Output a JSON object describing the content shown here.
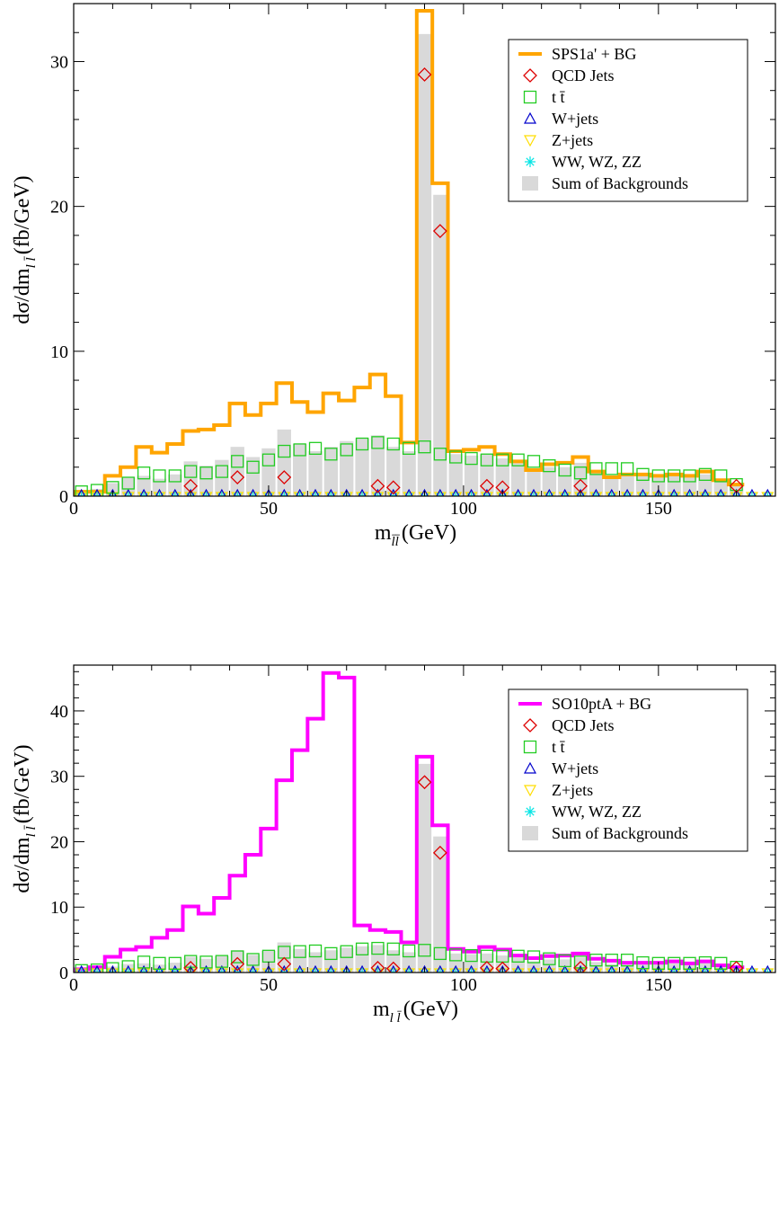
{
  "chart_data": [
    {
      "type": "histogram",
      "xlim": [
        0,
        180
      ],
      "ylim": [
        0,
        34
      ],
      "xticks": [
        0,
        50,
        100,
        150
      ],
      "yticks": [
        0,
        10,
        20,
        30
      ],
      "xlabel": {
        "main": "m",
        "sub": "l̄l̄",
        "unit": "(GeV)"
      },
      "ylabel": {
        "main": "dσ/dm",
        "sub": "l l̄",
        "unit": "(fb/GeV)"
      },
      "legend_position": "top-right",
      "bin_width": 4,
      "signal": {
        "name": "SPS1a' + BG",
        "color": "#ffa500",
        "values": [
          0.3,
          0.3,
          1.4,
          2.0,
          3.4,
          3.0,
          3.6,
          4.5,
          4.6,
          4.9,
          6.4,
          5.6,
          6.4,
          7.8,
          6.5,
          5.8,
          7.1,
          6.6,
          7.5,
          8.4,
          6.9,
          3.7,
          33.5,
          21.6,
          3.1,
          3.2,
          3.4,
          2.9,
          2.4,
          1.8,
          2.2,
          2.3,
          2.7,
          1.7,
          1.3,
          1.5,
          1.5,
          1.4,
          1.5,
          1.4,
          1.7,
          1.1,
          0.8
        ]
      },
      "background_sum": {
        "name": "Sum of Backgrounds",
        "color": "#d9d9d9",
        "values": [
          0.4,
          0.5,
          0.9,
          1.3,
          1.4,
          1.2,
          1.5,
          2.4,
          2.1,
          2.5,
          3.4,
          2.7,
          3.3,
          4.6,
          3.6,
          3.1,
          3.4,
          3.8,
          4.0,
          4.2,
          3.4,
          3.1,
          31.9,
          20.8,
          2.9,
          2.8,
          2.9,
          2.6,
          2.3,
          1.7,
          2.0,
          2.0,
          2.3,
          1.6,
          1.3,
          1.4,
          1.4,
          1.3,
          1.4,
          1.3,
          1.5,
          1.0,
          0.8
        ]
      },
      "qcd": {
        "name": "QCD Jets",
        "color": "#dd0000",
        "points": [
          [
            30,
            0.7
          ],
          [
            42,
            1.3
          ],
          [
            54,
            1.3
          ],
          [
            78,
            0.7
          ],
          [
            82,
            0.6
          ],
          [
            90,
            29.1
          ],
          [
            94,
            18.3
          ],
          [
            106,
            0.7
          ],
          [
            110,
            0.6
          ],
          [
            130,
            0.7
          ],
          [
            170,
            0.7
          ]
        ]
      },
      "ttbar": {
        "name": "t t̄",
        "color": "#22cc22",
        "values": [
          0.3,
          0.4,
          0.6,
          0.9,
          1.6,
          1.4,
          1.4,
          1.7,
          1.6,
          1.7,
          2.4,
          2.0,
          2.5,
          3.1,
          3.2,
          3.3,
          2.9,
          3.2,
          3.6,
          3.7,
          3.6,
          3.3,
          3.4,
          2.9,
          2.7,
          2.6,
          2.5,
          2.5,
          2.5,
          2.4,
          2.1,
          1.8,
          1.6,
          1.9,
          1.9,
          1.9,
          1.5,
          1.4,
          1.4,
          1.4,
          1.5,
          1.4,
          0.8
        ]
      },
      "wjets": {
        "name": "W+jets",
        "color": "#0000cc"
      },
      "zjets": {
        "name": "Z+jets",
        "color": "#ffdd00"
      },
      "dibosons": {
        "name": "WW, WZ, ZZ",
        "color": "#00e5e5"
      }
    },
    {
      "type": "histogram",
      "xlim": [
        0,
        180
      ],
      "ylim": [
        0,
        47
      ],
      "xticks": [
        0,
        50,
        100,
        150
      ],
      "yticks": [
        0,
        10,
        20,
        30,
        40
      ],
      "xlabel": {
        "main": "m",
        "sub": "l l̄",
        "unit": "(GeV)"
      },
      "ylabel": {
        "main": "dσ/dm",
        "sub": "l l̄",
        "unit": "(fb/GeV)"
      },
      "legend_position": "top-right",
      "bin_width": 4,
      "signal": {
        "name": "SO10ptA + BG",
        "color": "#ff00ff",
        "values": [
          0.5,
          0.8,
          2.4,
          3.5,
          3.9,
          5.3,
          6.5,
          10.1,
          9.0,
          11.4,
          14.8,
          18.0,
          22.0,
          29.4,
          34.0,
          38.8,
          45.8,
          45.1,
          7.2,
          6.5,
          6.2,
          4.6,
          33.0,
          22.5,
          3.6,
          3.2,
          3.9,
          3.5,
          2.6,
          2.2,
          2.5,
          2.6,
          2.9,
          2.1,
          1.8,
          1.5,
          1.5,
          1.5,
          1.7,
          1.4,
          1.7,
          1.1,
          0.8
        ]
      },
      "background_sum": {
        "name": "Sum of Backgrounds",
        "color": "#d9d9d9",
        "values": [
          0.4,
          0.5,
          0.9,
          1.3,
          1.4,
          1.2,
          1.5,
          2.4,
          2.1,
          2.5,
          3.4,
          2.7,
          3.3,
          4.6,
          3.6,
          3.1,
          3.4,
          3.8,
          4.0,
          4.2,
          3.4,
          3.1,
          31.9,
          20.8,
          2.9,
          2.8,
          2.9,
          2.6,
          2.3,
          1.7,
          2.0,
          2.0,
          2.3,
          1.6,
          1.3,
          1.4,
          1.4,
          1.3,
          1.4,
          1.3,
          1.5,
          1.0,
          0.8
        ]
      },
      "qcd": {
        "name": "QCD Jets",
        "color": "#dd0000",
        "points": [
          [
            30,
            0.7
          ],
          [
            42,
            1.3
          ],
          [
            54,
            1.3
          ],
          [
            78,
            0.7
          ],
          [
            82,
            0.6
          ],
          [
            90,
            29.1
          ],
          [
            94,
            18.3
          ],
          [
            106,
            0.7
          ],
          [
            110,
            0.6
          ],
          [
            130,
            0.7
          ],
          [
            170,
            0.7
          ]
        ]
      },
      "ttbar": {
        "name": "t t̄",
        "color": "#22cc22",
        "values": [
          0.3,
          0.4,
          0.6,
          0.9,
          1.6,
          1.4,
          1.4,
          1.7,
          1.6,
          1.7,
          2.4,
          2.0,
          2.5,
          3.1,
          3.2,
          3.3,
          2.9,
          3.2,
          3.6,
          3.7,
          3.6,
          3.3,
          3.4,
          2.9,
          2.7,
          2.6,
          2.5,
          2.5,
          2.5,
          2.4,
          2.1,
          1.8,
          1.6,
          1.9,
          1.9,
          1.9,
          1.5,
          1.4,
          1.4,
          1.4,
          1.5,
          1.4,
          0.8
        ]
      },
      "wjets": {
        "name": "W+jets",
        "color": "#0000cc"
      },
      "zjets": {
        "name": "Z+jets",
        "color": "#ffdd00"
      },
      "dibosons": {
        "name": "WW, WZ, ZZ",
        "color": "#00e5e5"
      }
    }
  ]
}
